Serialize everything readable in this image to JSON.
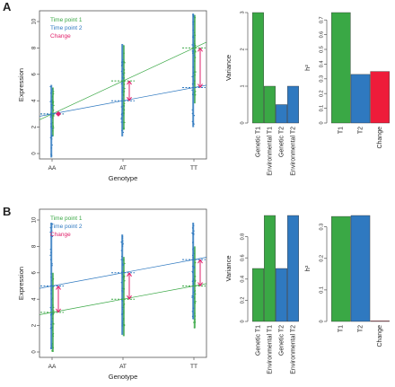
{
  "colors": {
    "green": "#3aa845",
    "blue": "#2f79c0",
    "red": "#ee1c3a",
    "magenta": "#e0226b",
    "axis": "#222222"
  },
  "chart_data": [
    {
      "id": "A-scatter",
      "panel_label": "A",
      "type": "scatter",
      "xlabel": "Genotype",
      "ylabel": "Expression",
      "categories": [
        "AA",
        "AT",
        "TT"
      ],
      "ylim": [
        0,
        10
      ],
      "yticks": [
        0,
        2,
        4,
        6,
        8,
        10
      ],
      "legend": {
        "position": "top-left",
        "entries": [
          "Time point 1",
          "Time point 2",
          "Change"
        ]
      },
      "series": [
        {
          "name": "Time point 1",
          "color": "green",
          "means": [
            3.0,
            5.5,
            8.0
          ],
          "ranges": [
            [
              1.3,
              5.0
            ],
            [
              1.8,
              8.2
            ],
            [
              3.8,
              10.5
            ]
          ]
        },
        {
          "name": "Time point 2",
          "color": "blue",
          "means": [
            3.0,
            4.0,
            5.0
          ],
          "ranges": [
            [
              -0.3,
              5.2
            ],
            [
              1.3,
              8.3
            ],
            [
              2.0,
              10.6
            ]
          ]
        }
      ],
      "change_arrows": [
        [
          3.0,
          3.0
        ],
        [
          5.5,
          4.0
        ],
        [
          8.0,
          5.0
        ]
      ]
    },
    {
      "id": "A-variance",
      "type": "bar",
      "ylabel": "Variance",
      "categories": [
        "Genetic T1",
        "Environmental T1",
        "Genetic T2",
        "Environmental T2"
      ],
      "values": [
        3.0,
        1.0,
        0.5,
        1.0
      ],
      "bar_colors": [
        "green",
        "green",
        "blue",
        "blue"
      ],
      "ylim": [
        0,
        3.0
      ],
      "yticks": [
        0,
        1,
        2,
        3
      ]
    },
    {
      "id": "A-h2",
      "type": "bar",
      "ylabel": "h²",
      "categories": [
        "T1",
        "T2",
        "Change"
      ],
      "values": [
        0.75,
        0.33,
        0.35
      ],
      "bar_colors": [
        "green",
        "blue",
        "red"
      ],
      "ylim": [
        0,
        0.75
      ],
      "yticks": [
        0.0,
        0.1,
        0.2,
        0.3,
        0.4,
        0.5,
        0.6,
        0.7
      ]
    },
    {
      "id": "B-scatter",
      "panel_label": "B",
      "type": "scatter",
      "xlabel": "Genotype",
      "ylabel": "Expression",
      "categories": [
        "AA",
        "AT",
        "TT"
      ],
      "ylim": [
        0,
        10
      ],
      "yticks": [
        0,
        2,
        4,
        6,
        8,
        10
      ],
      "legend": {
        "position": "top-left",
        "entries": [
          "Time point 1",
          "Time point 2",
          "Change"
        ]
      },
      "series": [
        {
          "name": "Time point 1",
          "color": "green",
          "means": [
            3.0,
            4.0,
            5.0
          ],
          "ranges": [
            [
              0.0,
              6.0
            ],
            [
              1.2,
              7.2
            ],
            [
              1.8,
              8.0
            ]
          ]
        },
        {
          "name": "Time point 2",
          "color": "blue",
          "means": [
            5.0,
            6.0,
            7.0
          ],
          "ranges": [
            [
              0.2,
              9.8
            ],
            [
              1.3,
              8.9
            ],
            [
              2.5,
              9.8
            ]
          ]
        }
      ],
      "change_arrows": [
        [
          3.0,
          5.0
        ],
        [
          4.0,
          6.0
        ],
        [
          5.0,
          7.0
        ]
      ]
    },
    {
      "id": "B-variance",
      "type": "bar",
      "ylabel": "Variance",
      "categories": [
        "Genetic T1",
        "Environmental T1",
        "Genetic T2",
        "Environmental T2"
      ],
      "values": [
        0.5,
        1.0,
        0.5,
        1.0
      ],
      "bar_colors": [
        "green",
        "green",
        "blue",
        "blue"
      ],
      "ylim": [
        0,
        1.0
      ],
      "yticks": [
        0.0,
        0.2,
        0.4,
        0.6,
        0.8
      ]
    },
    {
      "id": "B-h2",
      "type": "bar",
      "ylabel": "h²",
      "categories": [
        "T1",
        "T2",
        "Change"
      ],
      "values": [
        0.333,
        0.336,
        0.0
      ],
      "bar_colors": [
        "green",
        "blue",
        "red"
      ],
      "ylim": [
        0,
        0.336
      ],
      "yticks": [
        0.0,
        0.1,
        0.2,
        0.3
      ]
    }
  ]
}
